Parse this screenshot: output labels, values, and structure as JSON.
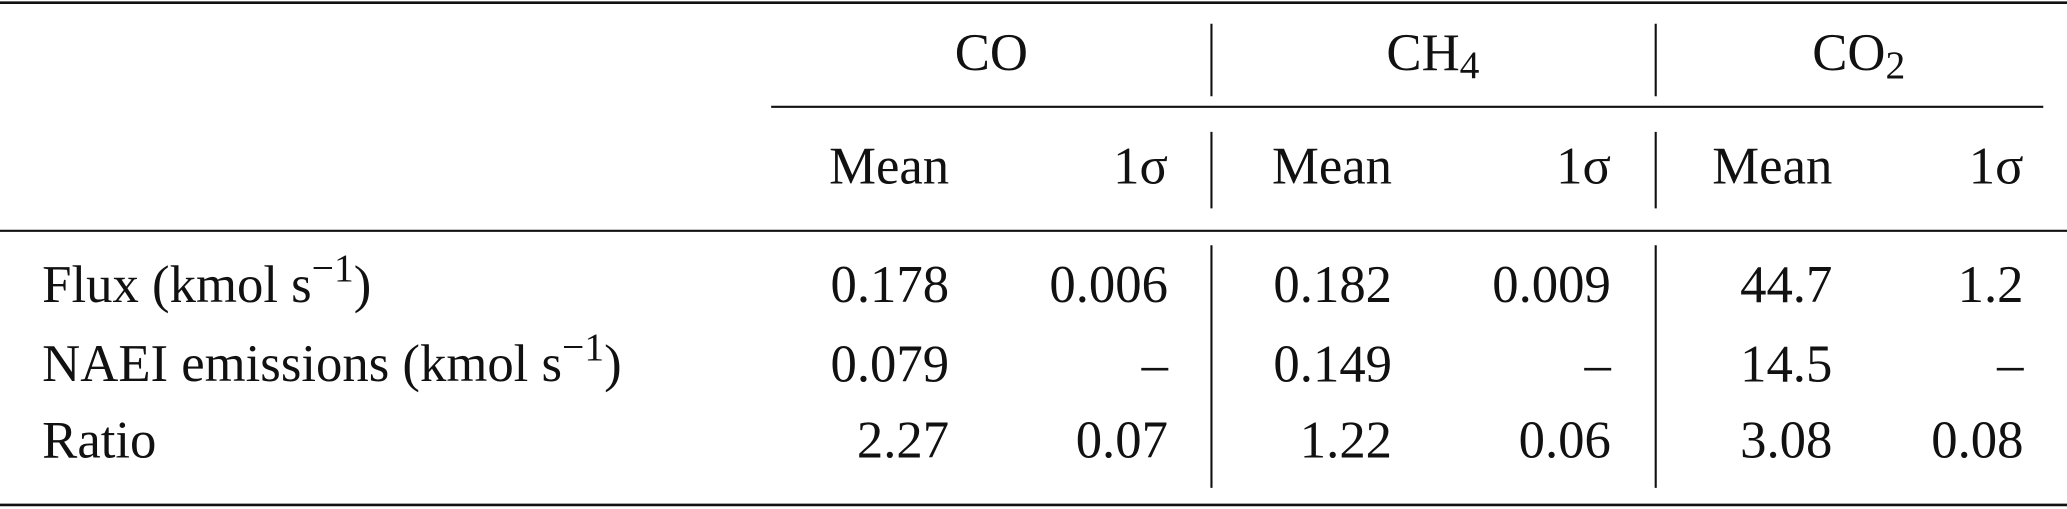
{
  "table": {
    "groups": [
      {
        "text": "CO"
      },
      {
        "text": "CH",
        "sub": "4"
      },
      {
        "text": "CO",
        "sub": "2"
      }
    ],
    "subheaders": [
      "Mean",
      "1σ",
      "Mean",
      "1σ",
      "Mean",
      "1σ"
    ],
    "rows": [
      {
        "label": {
          "text": "Flux (kmol s",
          "sup": "−1",
          "tail": ")"
        },
        "cells": [
          "0.178",
          "0.006",
          "0.182",
          "0.009",
          "44.7",
          "1.2"
        ]
      },
      {
        "label": {
          "text": "NAEI emissions (kmol s",
          "sup": "−1",
          "tail": ")"
        },
        "cells": [
          "0.079",
          "–",
          "0.149",
          "–",
          "14.5",
          "–"
        ]
      },
      {
        "label": {
          "text": "Ratio"
        },
        "cells": [
          "2.27",
          "0.07",
          "1.22",
          "0.06",
          "3.08",
          "0.08"
        ]
      }
    ]
  }
}
